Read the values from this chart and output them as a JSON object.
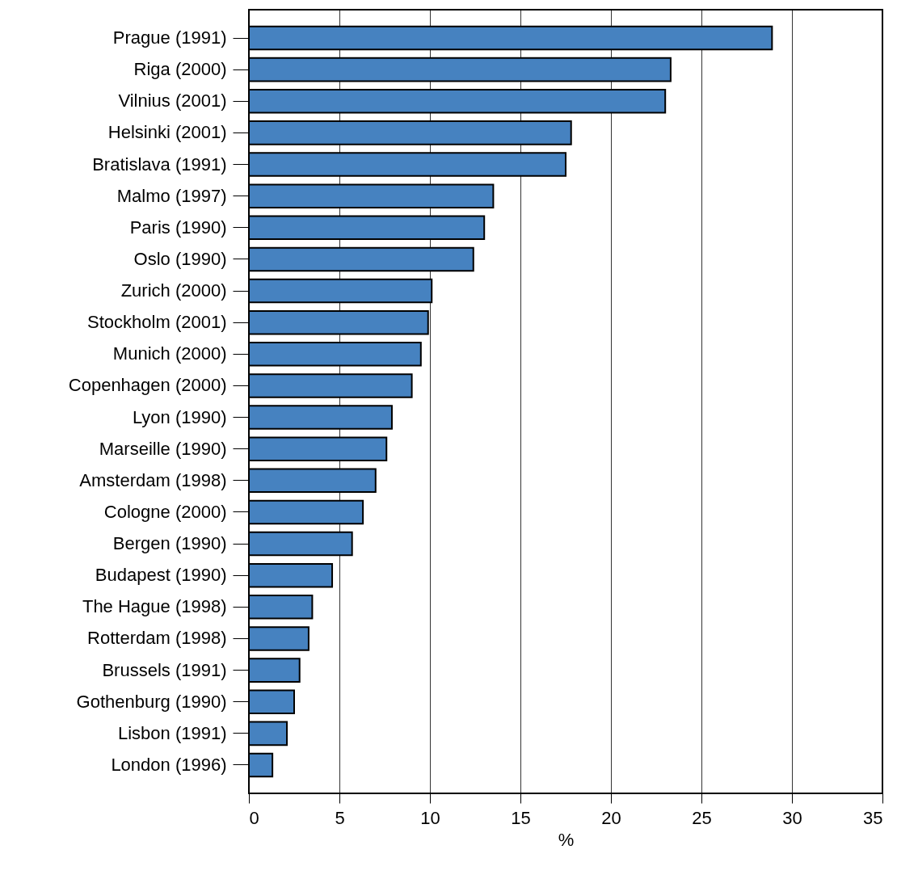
{
  "chart_data": {
    "type": "bar",
    "orientation": "horizontal",
    "xlabel": "%",
    "categories": [
      "Prague (1991)",
      "Riga (2000)",
      "Vilnius (2001)",
      "Helsinki (2001)",
      "Bratislava (1991)",
      "Malmo (1997)",
      "Paris (1990)",
      "Oslo (1990)",
      "Zurich (2000)",
      "Stockholm (2001)",
      "Munich (2000)",
      "Copenhagen (2000)",
      "Lyon (1990)",
      "Marseille (1990)",
      "Amsterdam (1998)",
      "Cologne (2000)",
      "Bergen (1990)",
      "Budapest (1990)",
      "The Hague (1998)",
      "Rotterdam (1998)",
      "Brussels (1991)",
      "Gothenburg (1990)",
      "Lisbon (1991)",
      "London (1996)"
    ],
    "values": [
      28.9,
      23.3,
      23.0,
      17.8,
      17.5,
      13.5,
      13.0,
      12.4,
      10.1,
      9.9,
      9.5,
      9.0,
      7.9,
      7.6,
      7.0,
      6.3,
      5.7,
      4.6,
      3.5,
      3.3,
      2.8,
      2.5,
      2.1,
      1.3
    ],
    "color": "#4682c0",
    "xlim": [
      0,
      35
    ],
    "xticks": [
      0,
      5,
      10,
      15,
      20,
      25,
      30,
      35
    ],
    "grid": "x"
  }
}
